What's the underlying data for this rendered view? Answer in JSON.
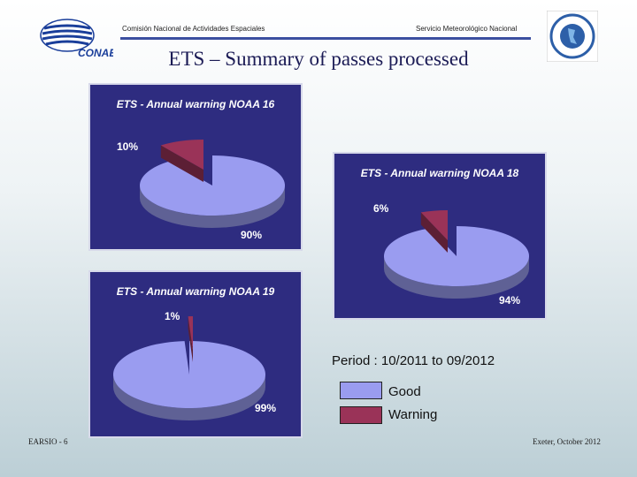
{
  "header": {
    "left_text": "Comisión Nacional de Actividades Espaciales",
    "right_text": "Servicio Meteorológico Nacional",
    "logo_left": "CONAE"
  },
  "title": "ETS – Summary of passes processed",
  "period": "Period : 10/2011 to 09/2012",
  "legend": [
    {
      "label": "Good",
      "color": "#9a9cf0"
    },
    {
      "label": "Warning",
      "color": "#9a3358"
    }
  ],
  "footer": {
    "left": "EARSIO - 6",
    "right": "Exeter, October 2012"
  },
  "colors": {
    "panel_bg": "#2e2c80",
    "good": "#9a9cf0",
    "warning": "#9a3358"
  },
  "chart_data": [
    {
      "type": "pie",
      "title": "ETS - Annual warning NOAA 16",
      "categories": [
        "Good",
        "Warning"
      ],
      "values": [
        90,
        10
      ],
      "labels": [
        "90%",
        "10%"
      ]
    },
    {
      "type": "pie",
      "title": "ETS - Annual warning NOAA 18",
      "categories": [
        "Good",
        "Warning"
      ],
      "values": [
        94,
        6
      ],
      "labels": [
        "94%",
        "6%"
      ]
    },
    {
      "type": "pie",
      "title": "ETS - Annual warning NOAA 19",
      "categories": [
        "Good",
        "Warning"
      ],
      "values": [
        99,
        1
      ],
      "labels": [
        "99%",
        "1%"
      ]
    }
  ]
}
